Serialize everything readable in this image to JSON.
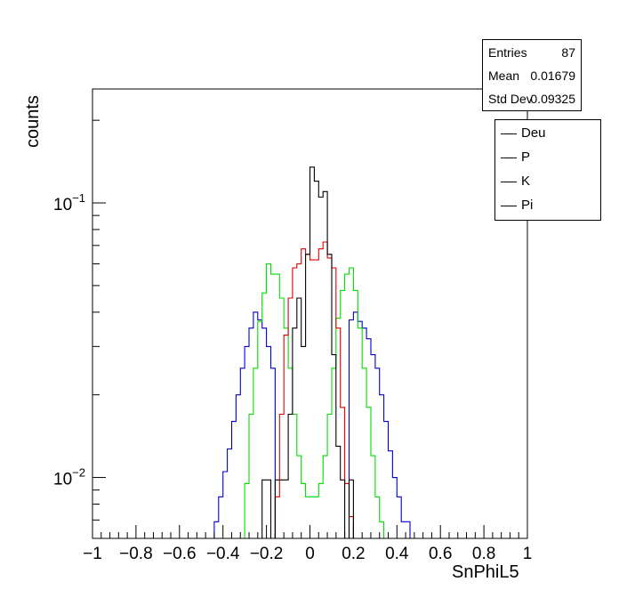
{
  "chart_data": {
    "type": "histogram",
    "xlabel": "SnPhiL5",
    "ylabel": "counts",
    "xlim": [
      -1,
      1
    ],
    "ylim": [
      0.006,
      0.26
    ],
    "y_scale": "log",
    "bins": 100,
    "bin_width": 0.02,
    "grid": false,
    "x_ticks": [
      "−1",
      "−0.8",
      "−0.6",
      "−0.4",
      "−0.2",
      "0",
      "0.2",
      "0.4",
      "0.6",
      "0.8",
      "1"
    ],
    "x_tick_values": [
      -1,
      -0.8,
      -0.6,
      -0.4,
      -0.2,
      0,
      0.2,
      0.4,
      0.6,
      0.8,
      1
    ],
    "y_tick_labels": [
      {
        "value": 0.1,
        "base": "10",
        "exp": "−1"
      },
      {
        "value": 0.01,
        "base": "10",
        "exp": "−2"
      }
    ],
    "stats": {
      "entries_label": "Entries",
      "entries": "87",
      "mean_label": "Mean",
      "mean": "0.01679",
      "std_label": "Std Dev",
      "std": "0.09325"
    },
    "legend_position": "top-right",
    "legend": [
      {
        "name": "Deu",
        "color": "#000000"
      },
      {
        "name": "P",
        "color": "#000000"
      },
      {
        "name": "K",
        "color": "#000000"
      },
      {
        "name": "Pi",
        "color": "#000000"
      }
    ],
    "series": [
      {
        "name": "Pi",
        "color": "#0000cc",
        "points": [
          [
            -0.44,
            0.0069
          ],
          [
            -0.42,
            0.0085
          ],
          [
            -0.4,
            0.0105
          ],
          [
            -0.38,
            0.0127
          ],
          [
            -0.36,
            0.016
          ],
          [
            -0.34,
            0.02
          ],
          [
            -0.32,
            0.025
          ],
          [
            -0.3,
            0.03
          ],
          [
            -0.28,
            0.035
          ],
          [
            -0.26,
            0.04
          ],
          [
            -0.24,
            0.0375
          ],
          [
            -0.22,
            0.035
          ],
          [
            -0.2,
            0.03
          ],
          [
            -0.18,
            0.025
          ],
          [
            0.18,
            0.0375
          ],
          [
            0.2,
            0.04
          ],
          [
            0.22,
            0.037
          ],
          [
            0.24,
            0.035
          ],
          [
            0.26,
            0.032
          ],
          [
            0.28,
            0.028
          ],
          [
            0.3,
            0.025
          ],
          [
            0.32,
            0.02
          ],
          [
            0.34,
            0.016
          ],
          [
            0.36,
            0.0125
          ],
          [
            0.38,
            0.01
          ],
          [
            0.4,
            0.0085
          ],
          [
            0.42,
            0.0069
          ],
          [
            0.44,
            0.0069
          ]
        ]
      },
      {
        "name": "K",
        "color": "#00dd00",
        "points": [
          [
            -0.3,
            0.0095
          ],
          [
            -0.28,
            0.017
          ],
          [
            -0.26,
            0.025
          ],
          [
            -0.24,
            0.037
          ],
          [
            -0.22,
            0.047
          ],
          [
            -0.2,
            0.06
          ],
          [
            -0.18,
            0.055
          ],
          [
            -0.16,
            0.055
          ],
          [
            -0.14,
            0.045
          ],
          [
            -0.12,
            0.035
          ],
          [
            -0.1,
            0.025
          ],
          [
            -0.08,
            0.017
          ],
          [
            -0.06,
            0.012
          ],
          [
            -0.04,
            0.0095
          ],
          [
            -0.02,
            0.0085
          ],
          [
            0.0,
            0.0085
          ],
          [
            0.02,
            0.0085
          ],
          [
            0.04,
            0.0095
          ],
          [
            0.06,
            0.012
          ],
          [
            0.08,
            0.017
          ],
          [
            0.1,
            0.025
          ],
          [
            0.12,
            0.038
          ],
          [
            0.14,
            0.048
          ],
          [
            0.16,
            0.055
          ],
          [
            0.18,
            0.058
          ],
          [
            0.2,
            0.048
          ],
          [
            0.22,
            0.035
          ],
          [
            0.24,
            0.025
          ],
          [
            0.26,
            0.018
          ],
          [
            0.28,
            0.012
          ],
          [
            0.3,
            0.0085
          ],
          [
            0.32,
            0.0069
          ]
        ]
      },
      {
        "name": "P",
        "color": "#dd0000",
        "points": [
          [
            -0.16,
            0.0085
          ],
          [
            -0.14,
            0.017
          ],
          [
            -0.12,
            0.033
          ],
          [
            -0.1,
            0.045
          ],
          [
            -0.08,
            0.058
          ],
          [
            -0.06,
            0.06
          ],
          [
            -0.04,
            0.068
          ],
          [
            -0.02,
            0.065
          ],
          [
            0.0,
            0.062
          ],
          [
            0.02,
            0.062
          ],
          [
            0.04,
            0.068
          ],
          [
            0.06,
            0.072
          ],
          [
            0.08,
            0.063
          ],
          [
            0.1,
            0.058
          ],
          [
            0.12,
            0.035
          ],
          [
            0.14,
            0.018
          ],
          [
            0.16,
            0.0095
          ],
          [
            0.18,
            0.0072
          ]
        ]
      },
      {
        "name": "Deu",
        "color": "#000000",
        "points": [
          [
            -0.22,
            0.0098
          ],
          [
            -0.2,
            0.0098
          ],
          [
            -0.16,
            0.0098
          ],
          [
            -0.14,
            0.0098
          ],
          [
            -0.12,
            0.0098
          ],
          [
            -0.1,
            0.017
          ],
          [
            -0.08,
            0.035
          ],
          [
            -0.06,
            0.045
          ],
          [
            -0.04,
            0.03
          ],
          [
            -0.02,
            0.065
          ],
          [
            0.0,
            0.135
          ],
          [
            0.02,
            0.12
          ],
          [
            0.04,
            0.105
          ],
          [
            0.06,
            0.11
          ],
          [
            0.08,
            0.065
          ],
          [
            0.1,
            0.028
          ],
          [
            0.12,
            0.013
          ],
          [
            0.14,
            0.0098
          ],
          [
            0.18,
            0.0098
          ]
        ]
      }
    ]
  }
}
